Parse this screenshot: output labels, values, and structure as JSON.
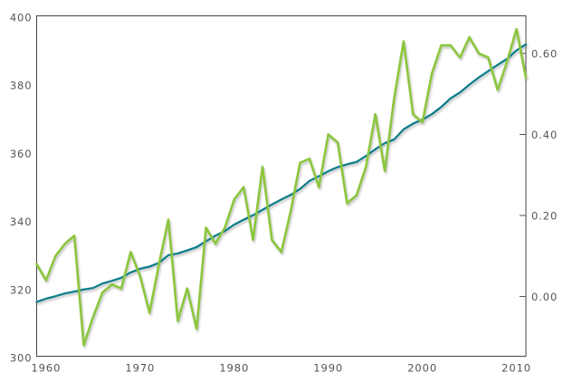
{
  "chart_data": {
    "type": "line",
    "title": "",
    "grid": false,
    "legend": "none",
    "x": [
      1959,
      1960,
      1961,
      1962,
      1963,
      1964,
      1965,
      1966,
      1967,
      1968,
      1969,
      1970,
      1971,
      1972,
      1973,
      1974,
      1975,
      1976,
      1977,
      1978,
      1979,
      1980,
      1981,
      1982,
      1983,
      1984,
      1985,
      1986,
      1987,
      1988,
      1989,
      1990,
      1991,
      1992,
      1993,
      1994,
      1995,
      1996,
      1997,
      1998,
      1999,
      2000,
      2001,
      2002,
      2003,
      2004,
      2005,
      2006,
      2007,
      2008,
      2009,
      2010,
      2011
    ],
    "series": [
      {
        "name": "left-axis-series-teal-smooth",
        "axis": "left",
        "color": "#117E8C",
        "stroke_width": 2.3,
        "values": [
          315.97,
          316.91,
          317.64,
          318.45,
          318.99,
          319.62,
          320.04,
          321.38,
          322.16,
          323.04,
          324.62,
          325.68,
          326.32,
          327.45,
          329.68,
          330.18,
          331.08,
          332.05,
          333.78,
          335.41,
          336.78,
          338.68,
          340.1,
          341.44,
          343.03,
          344.58,
          346.04,
          347.39,
          349.16,
          351.48,
          352.91,
          354.35,
          355.57,
          356.38,
          357.07,
          358.82,
          360.8,
          362.59,
          363.71,
          366.65,
          368.33,
          369.52,
          371.13,
          373.22,
          375.77,
          377.49,
          379.8,
          381.9,
          383.76,
          385.59,
          387.37,
          389.85,
          391.63
        ]
      },
      {
        "name": "right-axis-series-green-jagged",
        "axis": "right",
        "color": "#8CC63C",
        "stroke_width": 2.6,
        "values": [
          0.08,
          0.04,
          0.1,
          0.13,
          0.15,
          -0.12,
          -0.05,
          0.01,
          0.03,
          0.02,
          0.11,
          0.05,
          -0.04,
          0.08,
          0.19,
          -0.06,
          0.02,
          -0.08,
          0.17,
          0.13,
          0.17,
          0.24,
          0.27,
          0.14,
          0.32,
          0.14,
          0.11,
          0.21,
          0.33,
          0.34,
          0.27,
          0.4,
          0.38,
          0.23,
          0.25,
          0.32,
          0.45,
          0.31,
          0.49,
          0.63,
          0.45,
          0.43,
          0.55,
          0.62,
          0.62,
          0.59,
          0.64,
          0.6,
          0.59,
          0.51,
          0.58,
          0.66,
          0.54
        ]
      }
    ],
    "x_axis": {
      "range": [
        1959,
        2011
      ],
      "tick_labels": [
        "1960",
        "1970",
        "1980",
        "1990",
        "2000",
        "2010"
      ],
      "tick_values": [
        1960,
        1970,
        1980,
        1990,
        2000,
        2010
      ]
    },
    "left_axis": {
      "range": [
        300,
        400
      ],
      "tick_labels": [
        "300",
        "320",
        "340",
        "360",
        "380",
        "400"
      ],
      "tick_values": [
        300,
        320,
        340,
        360,
        380,
        400
      ]
    },
    "right_axis": {
      "tick_labels": [
        "0.00",
        "0.20",
        "0.40",
        "0.60"
      ],
      "tick_values": [
        0.0,
        0.2,
        0.4,
        0.6
      ]
    },
    "colors": {
      "background": "#ffffff",
      "plot_border": "#454547",
      "axis_label": "#545557",
      "series_teal": "#117E8C",
      "series_green": "#8CC63C",
      "line_shadow": "#6b6b6b"
    }
  }
}
